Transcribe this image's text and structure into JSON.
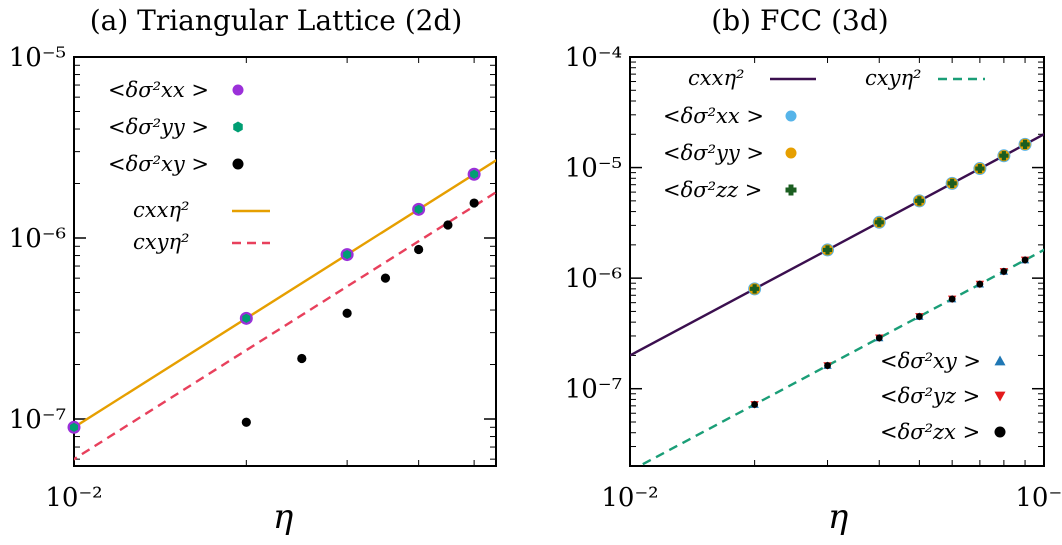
{
  "chart_data": [
    {
      "type": "scatter",
      "title": "(a) Triangular Lattice (2d)",
      "xlabel": "η",
      "ylabel": "",
      "xscale": "log",
      "yscale": "log",
      "xlim": [
        0.01,
        0.0546
      ],
      "ylim": [
        5.5e-08,
        1e-05
      ],
      "xticks": [
        {
          "value": 0.01,
          "label": "10⁻²"
        }
      ],
      "yticks": [
        {
          "value": 1e-07,
          "label": "10⁻⁷"
        },
        {
          "value": 1e-06,
          "label": "10⁻⁶"
        },
        {
          "value": 1e-05,
          "label": "10⁻⁵"
        }
      ],
      "grid": false,
      "legend_position": "top-left",
      "series": [
        {
          "name": "<δσ²xx >",
          "kind": "points",
          "color": "#9b30d9",
          "marker": "circle",
          "x": [
            0.01,
            0.02,
            0.03,
            0.04,
            0.05
          ],
          "y": [
            9e-08,
            3.6e-07,
            8.1e-07,
            1.44e-06,
            2.25e-06
          ]
        },
        {
          "name": "<δσ²yy >",
          "kind": "points",
          "color": "#009e73",
          "marker": "hexagon",
          "x": [
            0.01,
            0.02,
            0.03,
            0.04,
            0.05
          ],
          "y": [
            9e-08,
            3.6e-07,
            8.1e-07,
            1.44e-06,
            2.25e-06
          ]
        },
        {
          "name": "<δσ²xy >",
          "kind": "points",
          "color": "#000000",
          "marker": "circle",
          "x": [
            0.02,
            0.025,
            0.03,
            0.035,
            0.04,
            0.045,
            0.05
          ],
          "y": [
            9.6e-08,
            2.16e-07,
            3.84e-07,
            6e-07,
            8.64e-07,
            1.18e-06,
            1.56e-06
          ]
        },
        {
          "name": "cxxη²",
          "kind": "line",
          "color": "#e69f00",
          "dash": "solid",
          "coef": 0.0009
        },
        {
          "name": "cxyη²",
          "kind": "line",
          "color": "#e8405c",
          "dash": "dashed",
          "coef": 0.0006
        }
      ]
    },
    {
      "type": "scatter",
      "title": "(b) FCC (3d)",
      "xlabel": "η",
      "ylabel": "",
      "xscale": "log",
      "yscale": "log",
      "xlim": [
        0.01,
        0.1
      ],
      "ylim": [
        2e-08,
        0.0001
      ],
      "xticks": [
        {
          "value": 0.01,
          "label": "10⁻²"
        },
        {
          "value": 0.1,
          "label": "10⁻¹"
        }
      ],
      "yticks": [
        {
          "value": 1e-07,
          "label": "10⁻⁷"
        },
        {
          "value": 1e-06,
          "label": "10⁻⁶"
        },
        {
          "value": 1e-05,
          "label": "10⁻⁵"
        },
        {
          "value": 0.0001,
          "label": "10⁻⁴"
        }
      ],
      "grid": false,
      "legend_position": "top-left; off-diagonal entries bottom-right",
      "series": [
        {
          "name": "cxxη²",
          "kind": "line",
          "color": "#3b0f4f",
          "dash": "solid",
          "coef": 0.002
        },
        {
          "name": "cxyη²",
          "kind": "line",
          "color": "#1a9e77",
          "dash": "dashed",
          "coef": 0.00018
        },
        {
          "name": "<δσ²xx >",
          "kind": "points",
          "color": "#56b4e9",
          "marker": "circle",
          "x": [
            0.02,
            0.03,
            0.04,
            0.05,
            0.06,
            0.07,
            0.08,
            0.09
          ],
          "y": [
            8e-07,
            1.8e-06,
            3.2e-06,
            5e-06,
            7.2e-06,
            9.8e-06,
            1.28e-05,
            1.62e-05
          ]
        },
        {
          "name": "<δσ²yy >",
          "kind": "points",
          "color": "#e69f00",
          "marker": "circle",
          "x": [
            0.02,
            0.03,
            0.04,
            0.05,
            0.06,
            0.07,
            0.08,
            0.09
          ],
          "y": [
            8e-07,
            1.8e-06,
            3.2e-06,
            5e-06,
            7.2e-06,
            9.8e-06,
            1.28e-05,
            1.62e-05
          ]
        },
        {
          "name": "<δσ²zz >",
          "kind": "points",
          "color": "#1b5e20",
          "marker": "plus",
          "x": [
            0.02,
            0.03,
            0.04,
            0.05,
            0.06,
            0.07,
            0.08,
            0.09
          ],
          "y": [
            8e-07,
            1.8e-06,
            3.2e-06,
            5e-06,
            7.2e-06,
            9.8e-06,
            1.28e-05,
            1.62e-05
          ]
        },
        {
          "name": "<δσ²xy >",
          "kind": "points",
          "color": "#1f77b4",
          "marker": "triangle-up",
          "x": [
            0.02,
            0.03,
            0.04,
            0.05,
            0.06,
            0.07,
            0.08,
            0.09
          ],
          "y": [
            7.2e-08,
            1.62e-07,
            2.88e-07,
            4.5e-07,
            6.48e-07,
            8.82e-07,
            1.15e-06,
            1.46e-06
          ]
        },
        {
          "name": "<δσ²yz >",
          "kind": "points",
          "color": "#e31a1c",
          "marker": "triangle-down",
          "x": [
            0.02,
            0.03,
            0.04,
            0.05,
            0.06,
            0.07,
            0.08,
            0.09
          ],
          "y": [
            7.2e-08,
            1.62e-07,
            2.88e-07,
            4.5e-07,
            6.48e-07,
            8.82e-07,
            1.15e-06,
            1.46e-06
          ]
        },
        {
          "name": "<δσ²zx >",
          "kind": "points",
          "color": "#000000",
          "marker": "circle",
          "x": [
            0.02,
            0.03,
            0.04,
            0.05,
            0.06,
            0.07,
            0.08,
            0.09
          ],
          "y": [
            7.2e-08,
            1.62e-07,
            2.88e-07,
            4.5e-07,
            6.48e-07,
            8.82e-07,
            1.15e-06,
            1.46e-06
          ]
        }
      ]
    }
  ]
}
